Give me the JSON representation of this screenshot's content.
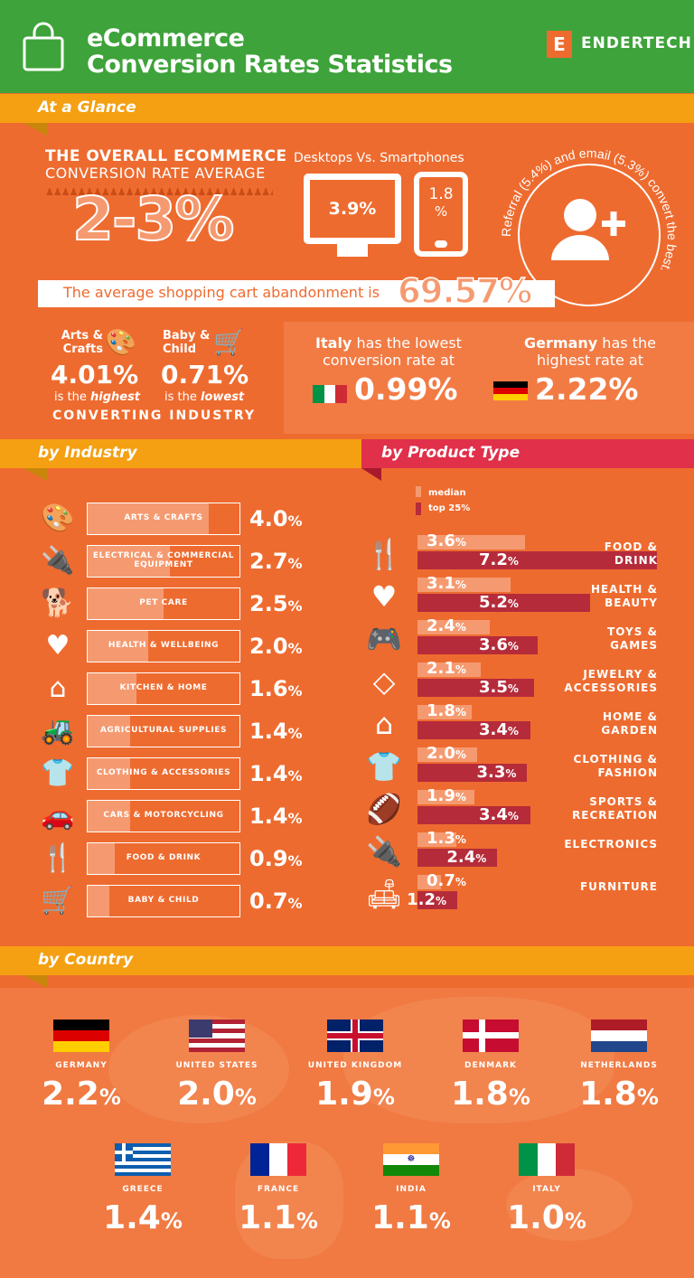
{
  "header": {
    "title_line1": "eCommerce",
    "title_line2": "Conversion Rates Statistics",
    "brand": "ENDERTECH",
    "brand_letter": "E"
  },
  "glance": {
    "section_label": "At a Glance",
    "overall_line1": "THE OVERALL ECOMMERCE",
    "overall_line2": "CONVERSION RATE AVERAGE",
    "overall_value": "2-3%",
    "devices_title": "Desktops Vs. Smartphones",
    "desktop_value": "3.9%",
    "smartphone_value_line1": "1.8",
    "smartphone_value_line2": "%",
    "referral_text": "Referral (5.4%) and email (5.3%) convert the best.",
    "abandonment_label": "The average shopping cart abandonment is",
    "abandonment_value": "69.57%",
    "arts_label_line1": "Arts &",
    "arts_label_line2": "Crafts",
    "arts_value": "4.01%",
    "arts_note_a": "is the ",
    "arts_note_b": "highest",
    "baby_label_line1": "Baby &",
    "baby_label_line2": "Child",
    "baby_value": "0.71%",
    "baby_note_a": "is the ",
    "baby_note_b": "lowest",
    "converting_industry": "CONVERTING INDUSTRY",
    "italy_line1_bold": "Italy",
    "italy_line1_rest": " has the lowest",
    "italy_line2": "conversion rate at",
    "italy_value": "0.99%",
    "germany_line1_bold": "Germany",
    "germany_line1_rest": " has the",
    "germany_line2": "highest rate at",
    "germany_value": "2.22%"
  },
  "industry": {
    "section_label": "by Industry",
    "items": [
      {
        "label": "ARTS & CRAFTS",
        "value": "4.0%",
        "icon": "palette-icon"
      },
      {
        "label": "ELECTRICAL & COMMERCIAL EQUIPMENT",
        "value": "2.7%",
        "icon": "plug-icon"
      },
      {
        "label": "PET CARE",
        "value": "2.5%",
        "icon": "dog-icon"
      },
      {
        "label": "HEALTH & WELLBEING",
        "value": "2.0%",
        "icon": "heart-icon"
      },
      {
        "label": "KITCHEN & HOME",
        "value": "1.6%",
        "icon": "house-icon"
      },
      {
        "label": "AGRICULTURAL SUPPLIES",
        "value": "1.4%",
        "icon": "tractor-icon"
      },
      {
        "label": "CLOTHING & ACCESSORIES",
        "value": "1.4%",
        "icon": "shirt-icon"
      },
      {
        "label": "CARS & MOTORCYCLING",
        "value": "1.4%",
        "icon": "car-icon"
      },
      {
        "label": "FOOD & DRINK",
        "value": "0.9%",
        "icon": "fork-knife-icon"
      },
      {
        "label": "BABY & CHILD",
        "value": "0.7%",
        "icon": "stroller-icon"
      }
    ]
  },
  "product": {
    "section_label": "by Product Type",
    "legend_median": "median",
    "legend_top": "top 25%",
    "items": [
      {
        "label_line1": "FOOD &",
        "label_line2": "DRINK",
        "median": "3.6%",
        "top": "7.2%",
        "icon": "fork-knife-icon"
      },
      {
        "label_line1": "HEALTH &",
        "label_line2": "BEAUTY",
        "median": "3.1%",
        "top": "5.2%",
        "icon": "heart-icon"
      },
      {
        "label_line1": "TOYS &",
        "label_line2": "GAMES",
        "median": "2.4%",
        "top": "3.6%",
        "icon": "gamepad-icon"
      },
      {
        "label_line1": "JEWELRY &",
        "label_line2": "ACCESSORIES",
        "median": "2.1%",
        "top": "3.5%",
        "icon": "diamond-icon"
      },
      {
        "label_line1": "HOME &",
        "label_line2": "GARDEN",
        "median": "1.8%",
        "top": "3.4%",
        "icon": "house-icon"
      },
      {
        "label_line1": "CLOTHING &",
        "label_line2": "FASHION",
        "median": "2.0%",
        "top": "3.3%",
        "icon": "shirt-icon"
      },
      {
        "label_line1": "SPORTS &",
        "label_line2": "RECREATION",
        "median": "1.9%",
        "top": "3.4%",
        "icon": "football-icon"
      },
      {
        "label_line1": "ELECTRONICS",
        "label_line2": "",
        "median": "1.3%",
        "top": "2.4%",
        "icon": "plug-icon"
      },
      {
        "label_line1": "FURNITURE",
        "label_line2": "",
        "median": "0.7%",
        "top": "1.2%",
        "icon": "sofa-icon"
      }
    ]
  },
  "country": {
    "section_label": "by Country",
    "items": [
      {
        "name": "GERMANY",
        "value": "2.2",
        "flag": "germany-flag"
      },
      {
        "name": "UNITED STATES",
        "value": "2.0",
        "flag": "usa-flag"
      },
      {
        "name": "UNITED KINGDOM",
        "value": "1.9",
        "flag": "uk-flag"
      },
      {
        "name": "DENMARK",
        "value": "1.8",
        "flag": "denmark-flag"
      },
      {
        "name": "NETHERLANDS",
        "value": "1.8",
        "flag": "netherlands-flag"
      },
      {
        "name": "GREECE",
        "value": "1.4",
        "flag": "greece-flag"
      },
      {
        "name": "FRANCE",
        "value": "1.1",
        "flag": "france-flag"
      },
      {
        "name": "INDIA",
        "value": "1.1",
        "flag": "india-flag"
      },
      {
        "name": "ITALY",
        "value": "1.0",
        "flag": "italy-flag"
      }
    ]
  },
  "colors": {
    "background": "#ee6b2f",
    "header_green": "#3ea33a",
    "banner_yellow": "#f4a012",
    "banner_red": "#e0304a",
    "bar_light": "#f59a70",
    "bar_dark": "#b52b3a"
  },
  "chart_data": [
    {
      "type": "bar",
      "title": "by Industry",
      "categories": [
        "ARTS & CRAFTS",
        "ELECTRICAL & COMMERCIAL EQUIPMENT",
        "PET CARE",
        "HEALTH & WELLBEING",
        "KITCHEN & HOME",
        "AGRICULTURAL SUPPLIES",
        "CLOTHING & ACCESSORIES",
        "CARS & MOTORCYCLING",
        "FOOD & DRINK",
        "BABY & CHILD"
      ],
      "values": [
        4.0,
        2.7,
        2.5,
        2.0,
        1.6,
        1.4,
        1.4,
        1.4,
        0.9,
        0.7
      ]
    },
    {
      "type": "bar",
      "title": "by Product Type",
      "categories": [
        "FOOD & DRINK",
        "HEALTH & BEAUTY",
        "TOYS & GAMES",
        "JEWELRY & ACCESSORIES",
        "HOME & GARDEN",
        "CLOTHING & FASHION",
        "SPORTS & RECREATION",
        "ELECTRONICS",
        "FURNITURE"
      ],
      "series": [
        {
          "name": "median",
          "values": [
            3.6,
            3.1,
            2.4,
            2.1,
            1.8,
            2.0,
            1.9,
            1.3,
            0.7
          ]
        },
        {
          "name": "top 25%",
          "values": [
            7.2,
            5.2,
            3.6,
            3.5,
            3.4,
            3.3,
            3.4,
            2.4,
            1.2
          ]
        }
      ]
    },
    {
      "type": "bar",
      "title": "by Country",
      "categories": [
        "GERMANY",
        "UNITED STATES",
        "UNITED KINGDOM",
        "DENMARK",
        "NETHERLANDS",
        "GREECE",
        "FRANCE",
        "INDIA",
        "ITALY"
      ],
      "values": [
        2.2,
        2.0,
        1.9,
        1.8,
        1.8,
        1.4,
        1.1,
        1.1,
        1.0
      ]
    }
  ]
}
